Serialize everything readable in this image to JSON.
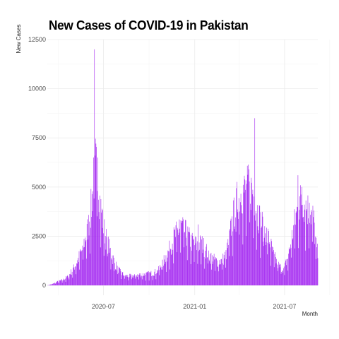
{
  "chart_data": {
    "type": "bar",
    "title": "New Cases of COVID-19 in Pakistan",
    "xlabel": "Month",
    "ylabel": "New Cases",
    "bar_color": "#a020f0",
    "background": "#ffffff",
    "grid": true,
    "grid_color": "#ebebeb",
    "x_start_date": "2020-03-10",
    "x_end_date": "2021-09-06",
    "ylim": [
      -500,
      12500
    ],
    "y_ticks": [
      0,
      2500,
      5000,
      7500,
      10000,
      12500
    ],
    "y_tick_labels": [
      "0",
      "2500",
      "5000",
      "7500",
      "10000",
      "12500"
    ],
    "x_ticks": [
      "2020-07-01",
      "2021-01-01",
      "2021-07-01"
    ],
    "x_tick_labels": [
      "2020-07",
      "2021-01",
      "2021-07"
    ],
    "anchors": [
      [
        "2020-03-10",
        0
      ],
      [
        "2020-03-20",
        70
      ],
      [
        "2020-03-31",
        200
      ],
      [
        "2020-04-10",
        280
      ],
      [
        "2020-04-20",
        450
      ],
      [
        "2020-04-30",
        800
      ],
      [
        "2020-05-10",
        1300
      ],
      [
        "2020-05-20",
        1900
      ],
      [
        "2020-05-31",
        3000
      ],
      [
        "2020-06-07",
        4200
      ],
      [
        "2020-06-12",
        5600
      ],
      [
        "2020-06-15",
        6400
      ],
      [
        "2020-06-20",
        5400
      ],
      [
        "2020-06-25",
        4200
      ],
      [
        "2020-06-30",
        3300
      ],
      [
        "2020-07-05",
        2600
      ],
      [
        "2020-07-15",
        1800
      ],
      [
        "2020-07-25",
        1100
      ],
      [
        "2020-08-05",
        650
      ],
      [
        "2020-08-15",
        500
      ],
      [
        "2020-08-25",
        480
      ],
      [
        "2020-09-10",
        550
      ],
      [
        "2020-09-25",
        580
      ],
      [
        "2020-10-10",
        650
      ],
      [
        "2020-10-20",
        800
      ],
      [
        "2020-10-31",
        1300
      ],
      [
        "2020-11-10",
        1800
      ],
      [
        "2020-11-20",
        2500
      ],
      [
        "2020-11-30",
        2900
      ],
      [
        "2020-12-05",
        3100
      ],
      [
        "2020-12-15",
        2700
      ],
      [
        "2020-12-25",
        2300
      ],
      [
        "2021-01-05",
        2100
      ],
      [
        "2021-01-15",
        2200
      ],
      [
        "2021-01-25",
        1800
      ],
      [
        "2021-02-05",
        1400
      ],
      [
        "2021-02-15",
        1250
      ],
      [
        "2021-02-25",
        1300
      ],
      [
        "2021-03-05",
        1600
      ],
      [
        "2021-03-10",
        2200
      ],
      [
        "2021-03-18",
        3400
      ],
      [
        "2021-03-28",
        4500
      ],
      [
        "2021-04-05",
        4900
      ],
      [
        "2021-04-15",
        5000
      ],
      [
        "2021-04-22",
        5200
      ],
      [
        "2021-04-28",
        4900
      ],
      [
        "2021-05-05",
        4100
      ],
      [
        "2021-05-12",
        3500
      ],
      [
        "2021-05-20",
        3000
      ],
      [
        "2021-05-31",
        2400
      ],
      [
        "2021-06-10",
        1500
      ],
      [
        "2021-06-20",
        1000
      ],
      [
        "2021-06-30",
        850
      ],
      [
        "2021-07-08",
        1500
      ],
      [
        "2021-07-15",
        2400
      ],
      [
        "2021-07-22",
        3400
      ],
      [
        "2021-07-30",
        4300
      ],
      [
        "2021-08-05",
        4500
      ],
      [
        "2021-08-12",
        4200
      ],
      [
        "2021-08-20",
        3900
      ],
      [
        "2021-08-28",
        3600
      ],
      [
        "2021-09-01",
        2400
      ],
      [
        "2021-09-06",
        1600
      ]
    ],
    "spikes": [
      [
        "2020-06-13",
        12000
      ],
      [
        "2020-06-14",
        6600
      ],
      [
        "2020-06-20",
        6500
      ],
      [
        "2020-06-11",
        6500
      ],
      [
        "2021-05-02",
        8500
      ],
      [
        "2021-04-20",
        5900
      ],
      [
        "2021-07-28",
        5600
      ],
      [
        "2021-08-05",
        5000
      ],
      [
        "2021-08-20",
        4200
      ],
      [
        "2020-12-01",
        3350
      ],
      [
        "2021-01-08",
        3100
      ]
    ]
  }
}
